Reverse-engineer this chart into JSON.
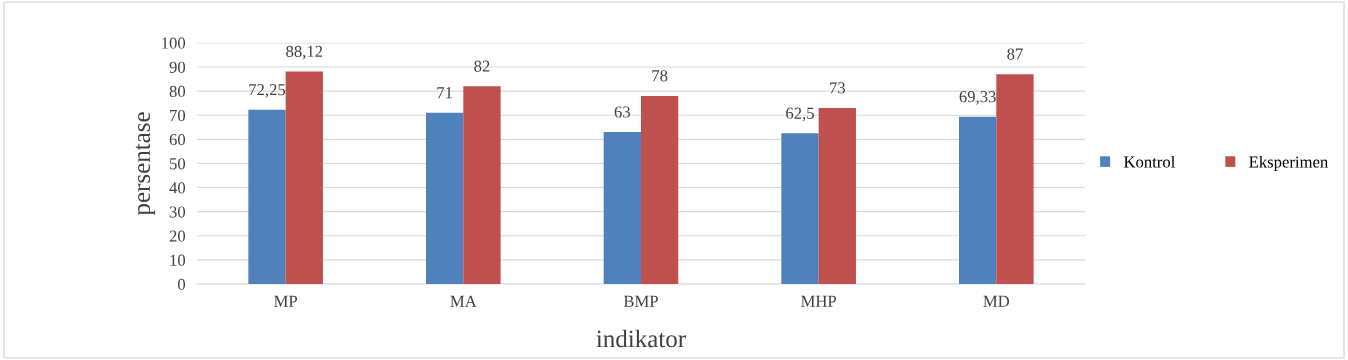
{
  "chart_data": {
    "type": "bar",
    "xlabel": "indikator",
    "ylabel": "persentase",
    "categories": [
      "MP",
      "MA",
      "BMP",
      "MHP",
      "MD"
    ],
    "series": [
      {
        "name": "Kontrol",
        "color": "#4f81bd",
        "values": [
          72.25,
          71,
          63,
          62.5,
          69.33
        ],
        "value_labels": [
          "72,25",
          "71",
          "63",
          "62,5",
          "69,33"
        ]
      },
      {
        "name": "Eksperimen",
        "color": "#c0504d",
        "values": [
          88.12,
          82,
          78,
          73,
          87
        ],
        "value_labels": [
          "88,12",
          "82",
          "78",
          "73",
          "87"
        ]
      }
    ],
    "ylim": [
      0,
      100
    ],
    "yticks": [
      0,
      10,
      20,
      30,
      40,
      50,
      60,
      70,
      80,
      90,
      100
    ],
    "grid": "y",
    "legend": "right"
  }
}
